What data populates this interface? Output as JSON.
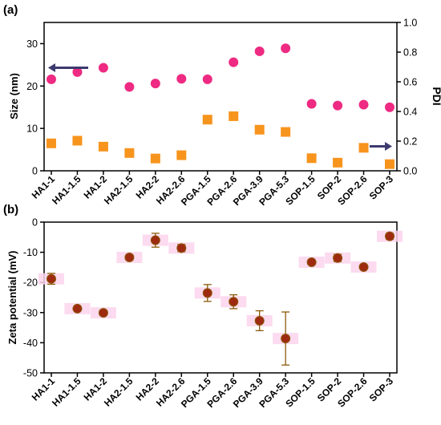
{
  "colors": {
    "size_marker": "#ee2a82",
    "pdi_marker": "#f7941d",
    "zeta_marker": "#9e2a0f",
    "zeta_marker_edge": "#8a5a0a",
    "zeta_highlight": "#fbd3ec",
    "arrow": "#3c3a6e",
    "axis": "#000000"
  },
  "chart_data": [
    {
      "panel_label": "(a)",
      "type": "scatter",
      "categories": [
        "HA1-1",
        "HA1-1.5",
        "HA1-2",
        "HA2-1.5",
        "HA2-2",
        "HA2-2.6",
        "PGA-1.5",
        "PGA-2.6",
        "PGA-3.9",
        "PGA-5.3",
        "SOP-1.5",
        "SOP-2",
        "SOP-2.6",
        "SOP-3"
      ],
      "ylabel": "Size (nm)",
      "ylim": [
        0,
        35
      ],
      "yticks": [
        "0",
        "10",
        "20",
        "30"
      ],
      "y2label": "PDI",
      "y2lim": [
        0,
        1.0
      ],
      "y2ticks": [
        "0.0",
        "0.2",
        "0.4",
        "0.6",
        "0.8",
        "1.0"
      ],
      "series": [
        {
          "axis": "left",
          "marker": "circle",
          "color_key": "size_marker",
          "values": [
            21.6,
            23.3,
            24.3,
            19.8,
            20.6,
            21.7,
            21.6,
            25.6,
            28.2,
            28.9,
            15.8,
            15.4,
            15.6,
            15.0
          ],
          "errors": [
            0.5,
            0.5,
            0.5,
            0.5,
            0.5,
            0.5,
            0.6,
            0.6,
            0.5,
            0.5,
            0.4,
            0.4,
            0.4,
            0.4
          ]
        },
        {
          "axis": "right",
          "marker": "square",
          "color_key": "pdi_marker",
          "values": [
            0.185,
            0.203,
            0.163,
            0.12,
            0.083,
            0.105,
            0.345,
            0.368,
            0.277,
            0.262,
            0.085,
            0.055,
            0.155,
            0.045
          ]
        }
      ],
      "arrows": [
        {
          "points_to": "left",
          "at_category_index": 0,
          "at_value": 24.3
        },
        {
          "points_to": "right",
          "at_category_index": 13,
          "at_value": 0.165
        }
      ]
    },
    {
      "panel_label": "(b)",
      "type": "scatter",
      "categories": [
        "HA1-1",
        "HA1-1.5",
        "HA1-2",
        "HA2-1.5",
        "HA2-2",
        "HA2-2.6",
        "PGA-1.5",
        "PGA-2.6",
        "PGA-3.9",
        "PGA-5.3",
        "SOP-1.5",
        "SOP-2",
        "SOP-2.6",
        "SOP-3"
      ],
      "ylabel": "Zeta potential (mV)",
      "ylim": [
        -50,
        0
      ],
      "yticks": [
        "0",
        "-10",
        "-20",
        "-30",
        "-40",
        "-50"
      ],
      "series": [
        {
          "marker": "circle",
          "color_key": "zeta_marker",
          "values": [
            -18.8,
            -28.7,
            -30.1,
            -11.7,
            -6.0,
            -8.6,
            -23.5,
            -26.4,
            -32.7,
            -38.6,
            -13.3,
            -11.9,
            -14.9,
            -4.7
          ],
          "errors": [
            1.8,
            0.6,
            0.8,
            0.9,
            2.3,
            1.2,
            2.8,
            2.3,
            3.3,
            8.8,
            0.7,
            1.2,
            0.6,
            1.0
          ]
        }
      ]
    }
  ]
}
